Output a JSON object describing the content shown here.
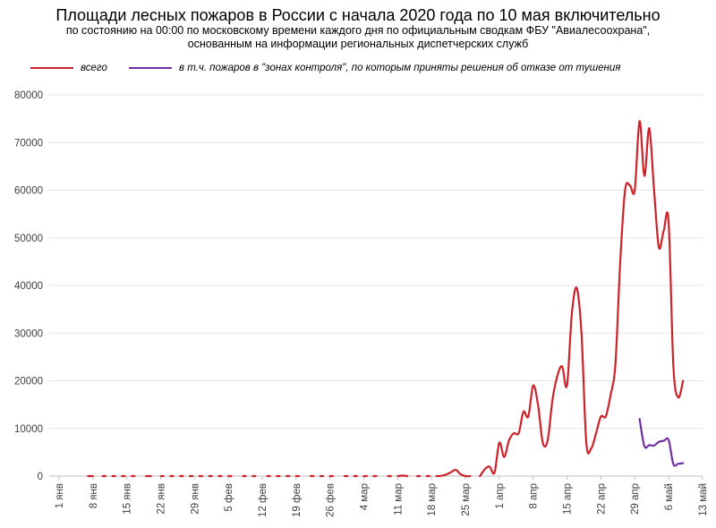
{
  "chart_data": {
    "type": "line",
    "title": "Площади лесных пожаров в России с начала 2020 года по 10 мая включительно",
    "subtitle_lines": [
      "по состоянию на 00:00 по московскому времени каждого дня по официальным сводкам ФБУ \"Авиалесоохрана\",",
      "основанным на информации региональных диспетчерских служб"
    ],
    "xlabel": "",
    "ylabel": "",
    "ylim": [
      0,
      80000
    ],
    "yticks": [
      0,
      10000,
      20000,
      30000,
      40000,
      50000,
      60000,
      70000,
      80000
    ],
    "x_tick_labels": [
      "1 янв",
      "8 янв",
      "15 янв",
      "22 янв",
      "29 янв",
      "5 фев",
      "12 фев",
      "19 фев",
      "26 фев",
      "4 мар",
      "11 мар",
      "18 мар",
      "25 мар",
      "1 апр",
      "8 апр",
      "15 апр",
      "22 апр",
      "29 апр",
      "6 май",
      "13 май"
    ],
    "x_unit": "day of year 2020 (1 = 1 янв)",
    "xlim": [
      1,
      134
    ],
    "grid": true,
    "legend_position": "top",
    "series": [
      {
        "name": "всего",
        "color": "#cc2229",
        "points": [
          [
            7,
            0
          ],
          [
            8,
            0
          ],
          [
            10,
            0
          ],
          [
            12,
            0
          ],
          [
            14,
            0
          ],
          [
            16,
            0
          ],
          [
            19,
            0
          ],
          [
            20,
            0
          ],
          [
            22,
            0
          ],
          [
            24,
            0
          ],
          [
            26,
            0
          ],
          [
            28,
            0
          ],
          [
            30,
            0
          ],
          [
            32,
            0
          ],
          [
            34,
            0
          ],
          [
            36,
            0
          ],
          [
            39,
            0
          ],
          [
            41,
            0
          ],
          [
            44,
            0
          ],
          [
            46,
            0
          ],
          [
            48,
            0
          ],
          [
            50,
            0
          ],
          [
            53,
            0
          ],
          [
            55,
            0
          ],
          [
            57,
            0
          ],
          [
            60,
            0
          ],
          [
            62,
            0
          ],
          [
            64,
            0
          ],
          [
            66,
            0
          ],
          [
            69,
            0
          ],
          [
            71,
            0
          ],
          [
            72,
            100
          ],
          [
            73,
            0
          ],
          [
            75,
            0
          ],
          [
            77,
            0
          ],
          [
            79,
            0
          ],
          [
            80,
            50
          ],
          [
            81,
            300
          ],
          [
            82,
            800
          ],
          [
            83,
            1300
          ],
          [
            84,
            400
          ],
          [
            85,
            0
          ],
          [
            86,
            0
          ],
          [
            88,
            0
          ],
          [
            89,
            1400
          ],
          [
            90,
            2000
          ],
          [
            91,
            700
          ],
          [
            92,
            7000
          ],
          [
            93,
            4000
          ],
          [
            94,
            7500
          ],
          [
            95,
            9000
          ],
          [
            96,
            9000
          ],
          [
            97,
            13500
          ],
          [
            98,
            12500
          ],
          [
            99,
            19000
          ],
          [
            100,
            15000
          ],
          [
            101,
            7000
          ],
          [
            102,
            7500
          ],
          [
            103,
            16000
          ],
          [
            104,
            21000
          ],
          [
            105,
            23000
          ],
          [
            106,
            19000
          ],
          [
            107,
            34000
          ],
          [
            108,
            39500
          ],
          [
            109,
            30000
          ],
          [
            110,
            7000
          ],
          [
            111,
            5800
          ],
          [
            112,
            9000
          ],
          [
            113,
            12500
          ],
          [
            114,
            12500
          ],
          [
            115,
            17000
          ],
          [
            116,
            23500
          ],
          [
            117,
            45000
          ],
          [
            118,
            60000
          ],
          [
            119,
            61000
          ],
          [
            120,
            60000
          ],
          [
            121,
            74500
          ],
          [
            122,
            63000
          ],
          [
            123,
            73000
          ],
          [
            124,
            60000
          ],
          [
            125,
            48000
          ],
          [
            126,
            51500
          ],
          [
            127,
            53500
          ],
          [
            128,
            23000
          ],
          [
            129,
            16500
          ],
          [
            130,
            20000
          ]
        ]
      },
      {
        "name": "в т.ч. пожаров в \"зонах контроля\", по которым приняты решения об отказе от тушения",
        "color": "#7030a0",
        "points": [
          [
            121,
            12000
          ],
          [
            122,
            6300
          ],
          [
            123,
            6500
          ],
          [
            124,
            6400
          ],
          [
            125,
            7200
          ],
          [
            126,
            7400
          ],
          [
            127,
            7600
          ],
          [
            128,
            2500
          ],
          [
            129,
            2600
          ],
          [
            130,
            2700
          ]
        ]
      }
    ]
  }
}
